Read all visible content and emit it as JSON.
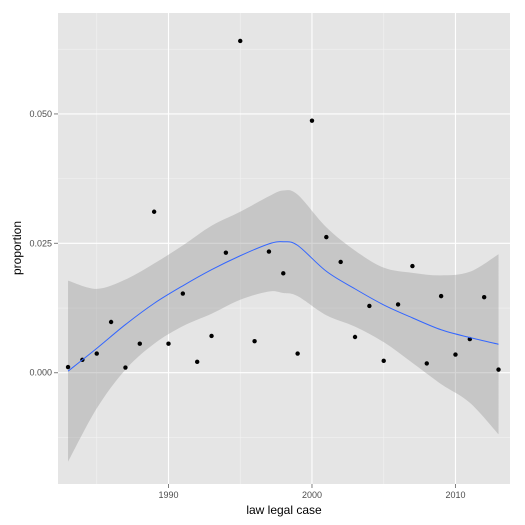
{
  "chart_data": {
    "type": "scatter",
    "title": "",
    "xlabel": "law legal case",
    "ylabel": "proportion",
    "xlim": [
      1982.3,
      2013.8
    ],
    "ylim": [
      -0.0215,
      0.0695
    ],
    "x_ticks": [
      1990,
      2000,
      2010
    ],
    "x_tick_labels": [
      "1990",
      "2000",
      "2010"
    ],
    "y_ticks": [
      0.0,
      0.025,
      0.05
    ],
    "y_tick_labels": [
      "0.000",
      "0.025",
      "0.050"
    ],
    "grid": true,
    "legend": "none",
    "series": [
      {
        "kind": "points",
        "x": [
          1983,
          1984,
          1985,
          1986,
          1987,
          1988,
          1989,
          1990,
          1991,
          1992,
          1993,
          1994,
          1995,
          1996,
          1997,
          1998,
          1999,
          2000,
          2001,
          2002,
          2003,
          2004,
          2005,
          2006,
          2007,
          2008,
          2009,
          2010,
          2011,
          2012,
          2013
        ],
        "y": [
          0.0011,
          0.0025,
          0.0037,
          0.0098,
          0.001,
          0.0056,
          0.0311,
          0.0056,
          0.0153,
          0.0021,
          0.0071,
          0.0232,
          0.0641,
          0.0061,
          0.0234,
          0.0192,
          0.0037,
          0.0487,
          0.0262,
          0.0214,
          0.0069,
          0.0129,
          0.0023,
          0.0132,
          0.0206,
          0.0018,
          0.0148,
          0.0035,
          0.0065,
          0.0146,
          0.0006
        ]
      },
      {
        "kind": "smooth",
        "x": [
          1983,
          1985,
          1987,
          1989,
          1991,
          1993,
          1995,
          1997,
          1998,
          1999,
          2001,
          2003,
          2005,
          2007,
          2009,
          2011,
          2013
        ],
        "y": [
          0.0003,
          0.0047,
          0.0093,
          0.0134,
          0.0168,
          0.0199,
          0.0226,
          0.0249,
          0.0253,
          0.0246,
          0.0196,
          0.0162,
          0.0131,
          0.0106,
          0.0083,
          0.0068,
          0.0055
        ]
      },
      {
        "kind": "confidence-band",
        "x": [
          1983,
          1985,
          1987,
          1989,
          1991,
          1993,
          1995,
          1997,
          1998,
          1999,
          2001,
          2003,
          2005,
          2007,
          2009,
          2011,
          2013
        ],
        "upper": [
          0.0178,
          0.0162,
          0.018,
          0.0211,
          0.0246,
          0.0284,
          0.0311,
          0.0341,
          0.0352,
          0.0344,
          0.0281,
          0.0236,
          0.0203,
          0.0193,
          0.0188,
          0.0195,
          0.0229
        ],
        "lower": [
          -0.0172,
          -0.0069,
          0.0006,
          0.0056,
          0.009,
          0.0114,
          0.0141,
          0.0157,
          0.0154,
          0.0148,
          0.0111,
          0.0089,
          0.0059,
          0.0019,
          -0.0022,
          -0.0058,
          -0.0119
        ]
      }
    ],
    "colors": {
      "panel": "#e5e5e5",
      "grid_major": "#ffffff",
      "grid_minor": "#f2f2f2",
      "points": "#000000",
      "smooth_line": "#3366ff",
      "band": "#999999",
      "tick_text": "#4d4d4d",
      "tick_marks": "#7f7f7f"
    }
  }
}
